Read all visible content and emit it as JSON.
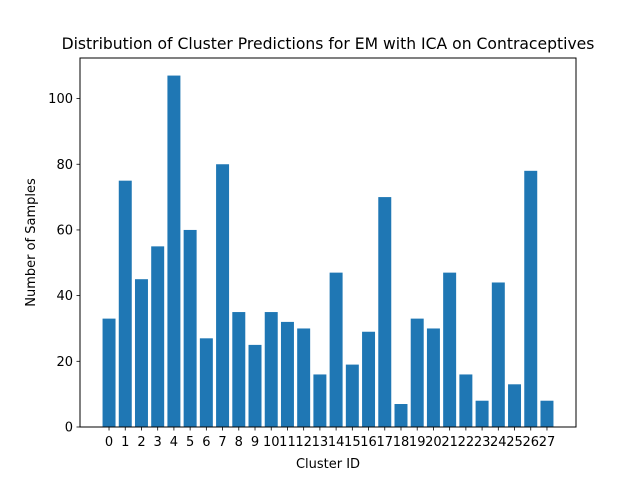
{
  "chart_data": {
    "type": "bar",
    "title": "Distribution of Cluster Predictions for EM with ICA on Contraceptives",
    "xlabel": "Cluster ID",
    "ylabel": "Number of Samples",
    "categories": [
      "0",
      "1",
      "2",
      "3",
      "4",
      "5",
      "6",
      "7",
      "8",
      "9",
      "10",
      "11",
      "12",
      "13",
      "14",
      "15",
      "16",
      "17",
      "18",
      "19",
      "20",
      "21",
      "22",
      "23",
      "24",
      "25",
      "26",
      "27"
    ],
    "values": [
      33,
      75,
      45,
      55,
      107,
      60,
      27,
      80,
      35,
      25,
      35,
      32,
      30,
      16,
      47,
      19,
      29,
      70,
      7,
      33,
      30,
      47,
      16,
      8,
      44,
      13,
      78,
      8
    ],
    "ylim": [
      0,
      112.35
    ],
    "yticks": [
      0,
      20,
      40,
      60,
      80,
      100
    ],
    "grid": false,
    "legend": "none",
    "bar_color": "#1f77b4"
  }
}
